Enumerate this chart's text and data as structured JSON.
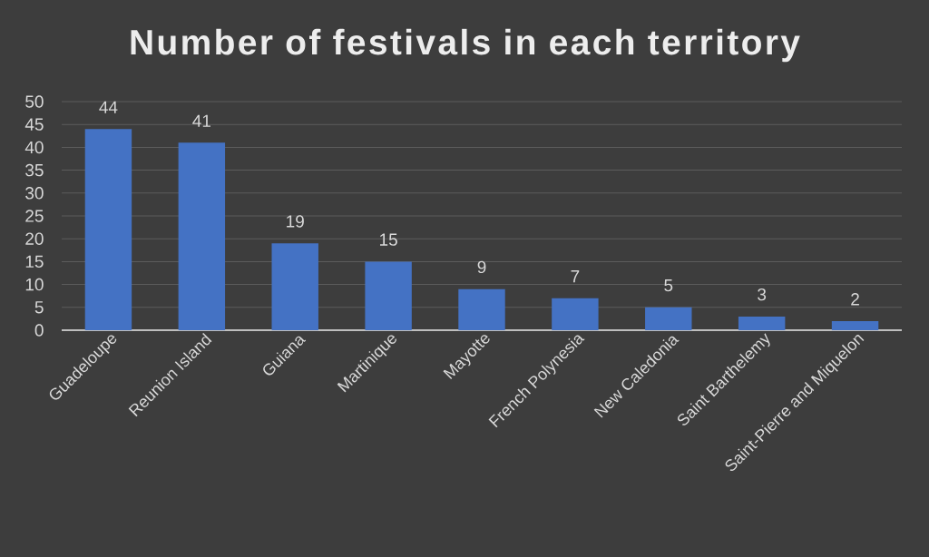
{
  "chart_data": {
    "type": "bar",
    "title": "Number of festivals in each territory",
    "categories": [
      "Guadeloupe",
      "Reunion Island",
      "Guiana",
      "Martinique",
      "Mayotte",
      "French Polynesia",
      "New Caledonia",
      "Saint Barthelemy",
      "Saint-Pierre and Miquelon"
    ],
    "values": [
      44,
      41,
      19,
      15,
      9,
      7,
      5,
      3,
      2
    ],
    "color": "#4472c4",
    "ylim": [
      0,
      50
    ],
    "yticks": [
      0,
      5,
      10,
      15,
      20,
      25,
      30,
      35,
      40,
      45,
      50
    ],
    "grid": "y",
    "data_labels": true
  }
}
